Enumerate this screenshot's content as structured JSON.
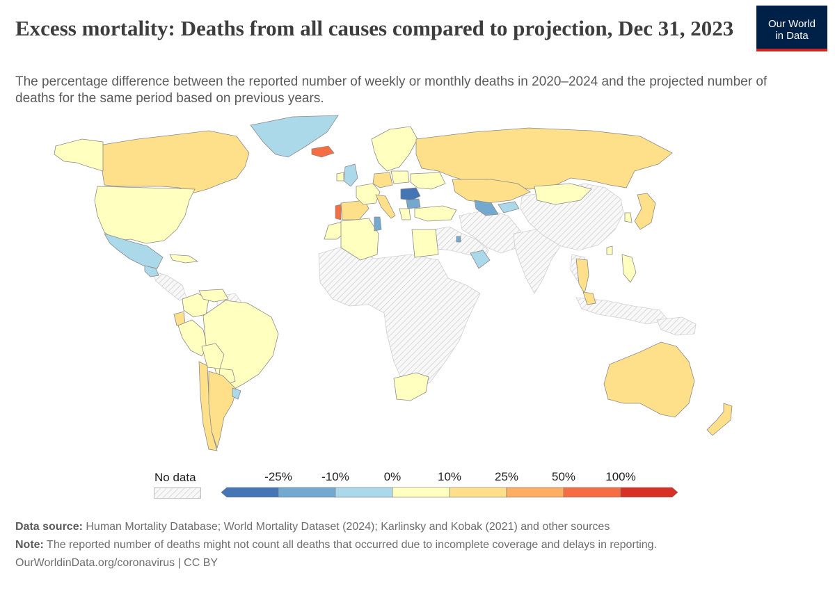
{
  "header": {
    "title": "Excess mortality: Deaths from all causes compared to projection, Dec 31, 2023",
    "subtitle": "The percentage difference between the reported number of weekly or monthly deaths in 2020–2024 and the projected number of deaths for the same period based on previous years."
  },
  "logo": {
    "line1": "Our World",
    "line2": "in Data",
    "color_bg": "#002147",
    "color_bar": "#ce261e"
  },
  "legend": {
    "no_data_label": "No data",
    "ticks": [
      "-25%",
      "-10%",
      "0%",
      "10%",
      "25%",
      "50%",
      "100%"
    ],
    "bins": [
      {
        "color": "#4575b4"
      },
      {
        "color": "#74a9cf"
      },
      {
        "color": "#abd9e9"
      },
      {
        "color": "#ffffbf"
      },
      {
        "color": "#fee08b"
      },
      {
        "color": "#fdae61"
      },
      {
        "color": "#f46d43"
      },
      {
        "color": "#d73027"
      }
    ]
  },
  "chart_data": {
    "type": "choropleth",
    "title": "Excess mortality: Deaths from all causes compared to projection, Dec 31, 2023",
    "unit": "%",
    "bins_thresholds": [
      -25,
      -10,
      0,
      10,
      25,
      50,
      100
    ],
    "regions": [
      {
        "name": "Canada",
        "bin": 4
      },
      {
        "name": "Alaska",
        "bin": 3
      },
      {
        "name": "United States",
        "bin": 3
      },
      {
        "name": "Mexico",
        "bin": 2
      },
      {
        "name": "Guatemala",
        "bin": 2
      },
      {
        "name": "Cuba",
        "bin": 3
      },
      {
        "name": "Colombia",
        "bin": 3
      },
      {
        "name": "Venezuela",
        "bin": 3
      },
      {
        "name": "Ecuador",
        "bin": 4
      },
      {
        "name": "Peru",
        "bin": 3
      },
      {
        "name": "Brazil",
        "bin": 3
      },
      {
        "name": "Bolivia",
        "bin": 3
      },
      {
        "name": "Paraguay",
        "bin": 3
      },
      {
        "name": "Chile",
        "bin": 4
      },
      {
        "name": "Argentina",
        "bin": 4
      },
      {
        "name": "Uruguay",
        "bin": 2
      },
      {
        "name": "Greenland",
        "bin": 2
      },
      {
        "name": "Iceland",
        "bin": 6
      },
      {
        "name": "United Kingdom",
        "bin": 2
      },
      {
        "name": "Ireland",
        "bin": 3
      },
      {
        "name": "Portugal",
        "bin": 6
      },
      {
        "name": "Spain",
        "bin": 4
      },
      {
        "name": "France",
        "bin": 3
      },
      {
        "name": "Italy",
        "bin": 4
      },
      {
        "name": "Germany",
        "bin": 4
      },
      {
        "name": "Poland",
        "bin": 3
      },
      {
        "name": "Scandinavia",
        "bin": 3
      },
      {
        "name": "Romania",
        "bin": 0
      },
      {
        "name": "Bulgaria",
        "bin": 1
      },
      {
        "name": "Greece",
        "bin": 3
      },
      {
        "name": "Turkey",
        "bin": 3
      },
      {
        "name": "Ukraine",
        "bin": 3
      },
      {
        "name": "Russia",
        "bin": 4
      },
      {
        "name": "Kazakhstan",
        "bin": 4
      },
      {
        "name": "Uzbekistan",
        "bin": 1
      },
      {
        "name": "Kyrgyzstan",
        "bin": 2
      },
      {
        "name": "Mongolia",
        "bin": 3
      },
      {
        "name": "Japan",
        "bin": 4
      },
      {
        "name": "South Korea",
        "bin": 3
      },
      {
        "name": "Taiwan",
        "bin": 3
      },
      {
        "name": "Philippines",
        "bin": 3
      },
      {
        "name": "Thailand",
        "bin": 4
      },
      {
        "name": "Malaysia",
        "bin": 4
      },
      {
        "name": "Morocco",
        "bin": 3
      },
      {
        "name": "Algeria",
        "bin": 3
      },
      {
        "name": "Tunisia",
        "bin": 1
      },
      {
        "name": "Egypt",
        "bin": 3
      },
      {
        "name": "Oman",
        "bin": 2
      },
      {
        "name": "Qatar",
        "bin": 1
      },
      {
        "name": "South Africa",
        "bin": 3
      },
      {
        "name": "Australia",
        "bin": 4
      },
      {
        "name": "New Zealand",
        "bin": 4
      }
    ]
  },
  "footer": {
    "source_label": "Data source:",
    "source_text": "Human Mortality Database; World Mortality Dataset (2024); Karlinsky and Kobak (2021) and other sources",
    "note_label": "Note:",
    "note_text": "The reported number of deaths might not count all deaths that occurred due to incomplete coverage and delays in reporting.",
    "credit": "OurWorldinData.org/coronavirus | CC BY"
  }
}
